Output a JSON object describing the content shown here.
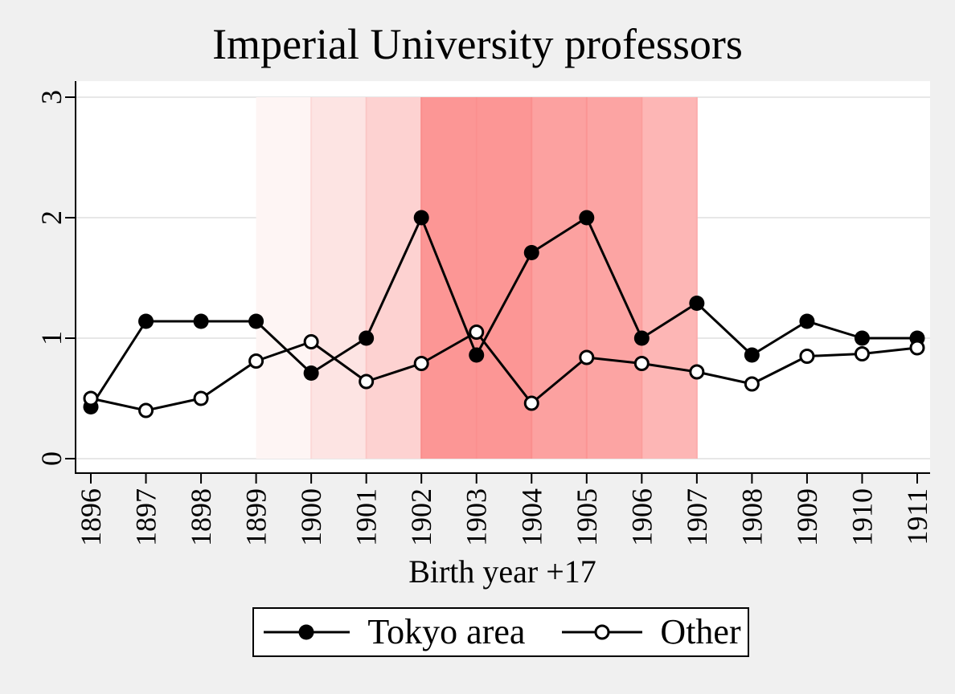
{
  "page": {
    "background_color": "#f0f0f0",
    "plot_background_color": "#ffffff",
    "gridline_color": "#e7e7e7",
    "axis_color": "#000000",
    "text_color": "#000000"
  },
  "chart_data": {
    "type": "line",
    "title": "Imperial University professors",
    "xlabel": "Birth year +17",
    "ylabel": "",
    "categories": [
      "1896",
      "1897",
      "1898",
      "1899",
      "1900",
      "1901",
      "1902",
      "1903",
      "1904",
      "1905",
      "1906",
      "1907",
      "1908",
      "1909",
      "1910",
      "1911"
    ],
    "series": [
      {
        "name": "Tokyo area",
        "marker": "filled-circle",
        "color": "#000000",
        "values": [
          0.43,
          1.14,
          1.14,
          1.14,
          0.71,
          1.0,
          2.0,
          0.86,
          1.71,
          2.0,
          1.0,
          1.29,
          0.86,
          1.14,
          1.0,
          1.0
        ]
      },
      {
        "name": "Other",
        "marker": "open-circle",
        "color": "#000000",
        "values": [
          0.5,
          0.4,
          0.5,
          0.81,
          0.97,
          0.64,
          0.79,
          1.05,
          0.46,
          0.84,
          0.79,
          0.72,
          0.62,
          0.85,
          0.87,
          0.92
        ]
      }
    ],
    "yticks": [
      "0",
      "1",
      "2",
      "3"
    ],
    "ylim": [
      0,
      3.13
    ],
    "xlim": [
      1895.7,
      1911.23
    ],
    "grid": "horizontal",
    "legend_position": "bottom",
    "x_tick_label_rotation": -90,
    "y_tick_label_rotation": -90,
    "bands": [
      {
        "from": 1899,
        "to": 1900,
        "color": "#fef5f4"
      },
      {
        "from": 1900,
        "to": 1901,
        "color": "#fde4e3"
      },
      {
        "from": 1901,
        "to": 1902,
        "color": "#fdd2d1"
      },
      {
        "from": 1902,
        "to": 1903,
        "color": "#fc9695"
      },
      {
        "from": 1903,
        "to": 1904,
        "color": "#fc9695"
      },
      {
        "from": 1904,
        "to": 1905,
        "color": "#fca1a0"
      },
      {
        "from": 1905,
        "to": 1906,
        "color": "#fca4a3"
      },
      {
        "from": 1906,
        "to": 1907,
        "color": "#fdb6b5"
      }
    ],
    "band_dividers": [
      {
        "year": 1900,
        "color": "#fcd9d8"
      },
      {
        "year": 1901,
        "color": "#fbc7c6"
      },
      {
        "year": 1902,
        "color": "#fa8d8c"
      },
      {
        "year": 1903,
        "color": "#fb908f"
      },
      {
        "year": 1904,
        "color": "#fa8e8d"
      },
      {
        "year": 1905,
        "color": "#fb9594"
      },
      {
        "year": 1906,
        "color": "#fb9e9d"
      },
      {
        "year": 1907,
        "color": "#fcadac"
      }
    ]
  },
  "legend": {
    "items": [
      {
        "label": "Tokyo area",
        "marker": "filled-circle"
      },
      {
        "label": "Other",
        "marker": "open-circle"
      }
    ]
  }
}
